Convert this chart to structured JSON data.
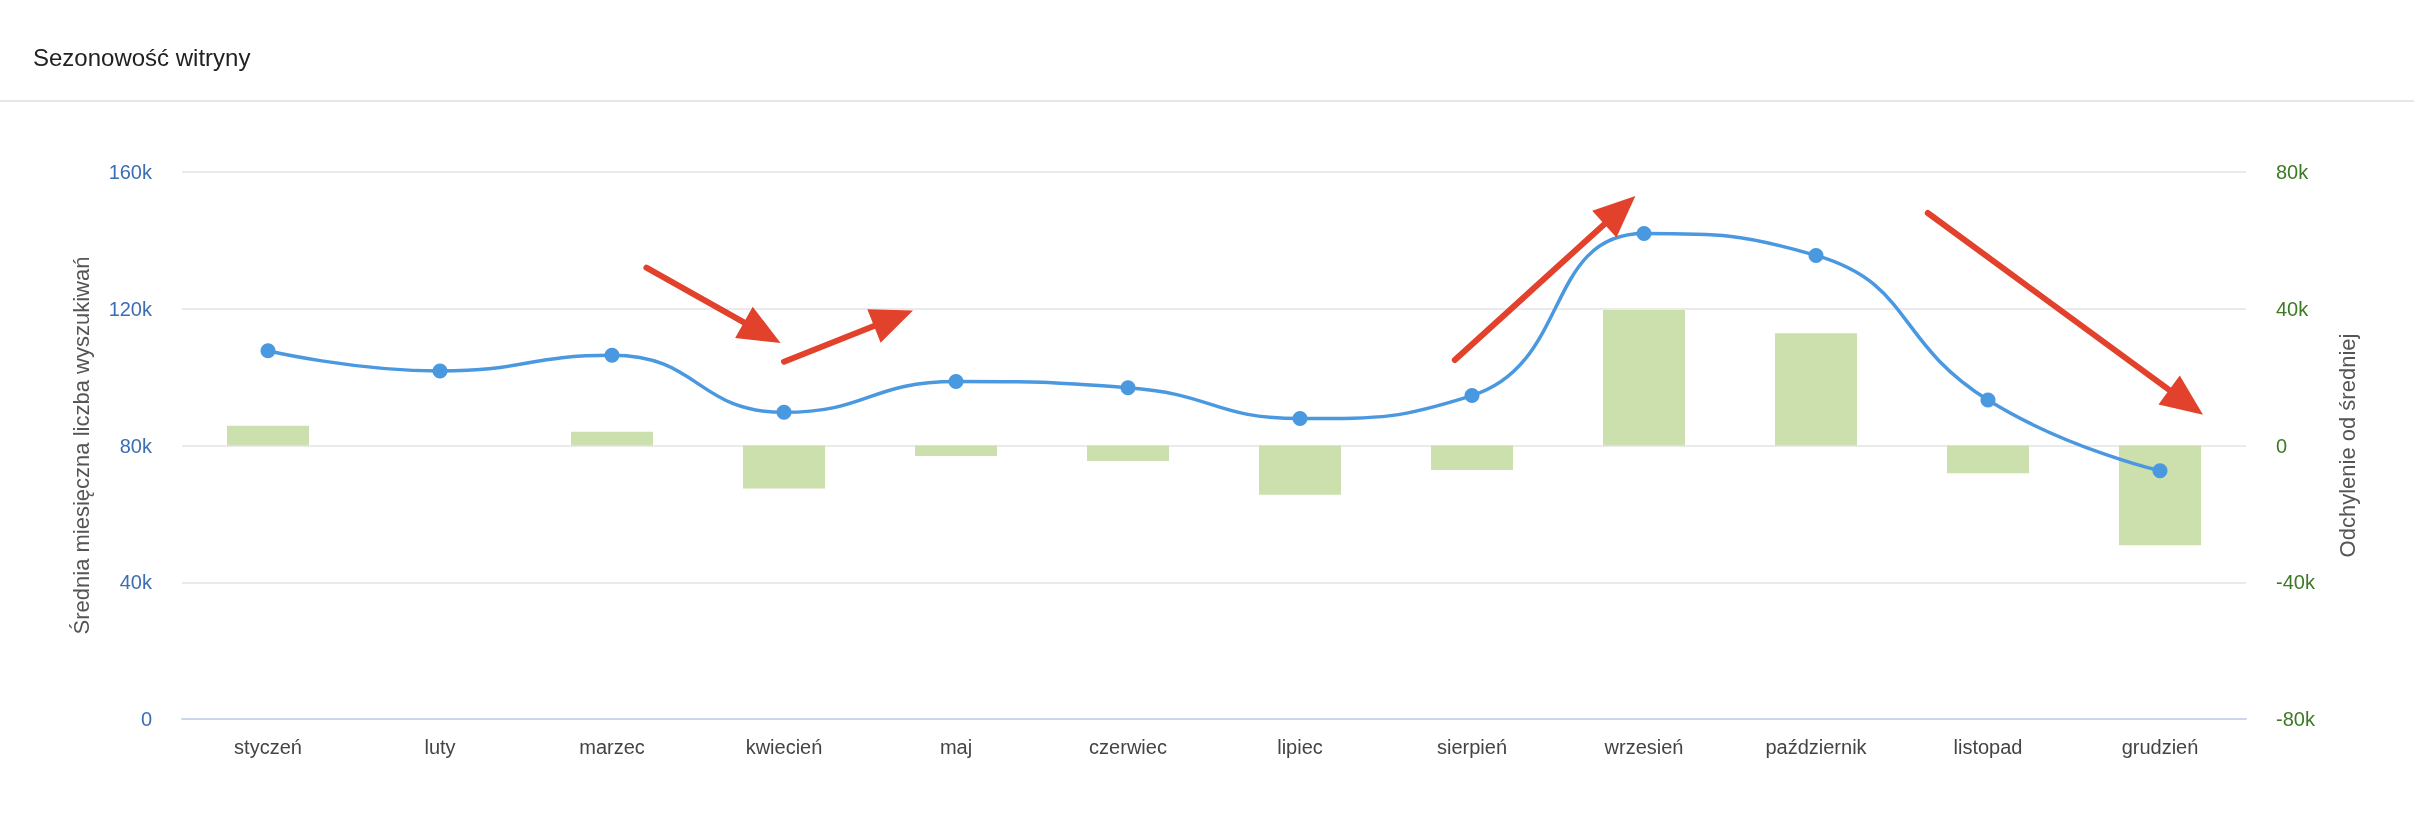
{
  "chart_data": {
    "type": "bar",
    "title": "Sezonowość witryny",
    "ylabel": "Średnia miesięczna liczba wyszukiwań",
    "y2label": "Odchylenie od średniej",
    "categories": [
      "styczeń",
      "luty",
      "marzec",
      "kwiecień",
      "maj",
      "czerwiec",
      "lipiec",
      "sierpień",
      "wrzesień",
      "październik",
      "listopad",
      "grudzień"
    ],
    "series": [
      {
        "axis": "y2",
        "color": "#cce0ad",
        "values": [
          5800,
          0,
          4000,
          -12600,
          -3100,
          -4500,
          -14400,
          -7200,
          39600,
          32800,
          -8100,
          -29200
        ]
      },
      {
        "type": "line",
        "color": "#4a98e0",
        "values": [
          107700,
          101800,
          106400,
          89700,
          98700,
          96900,
          87900,
          94600,
          142000,
          135600,
          93300,
          72600
        ]
      }
    ],
    "ylim": [
      0,
      160000
    ],
    "yticks": [
      {
        "value": 0,
        "label": "0"
      },
      {
        "value": 40000,
        "label": "40k"
      },
      {
        "value": 80000,
        "label": "80k"
      },
      {
        "value": 120000,
        "label": "120k"
      },
      {
        "value": 160000,
        "label": "160k"
      }
    ],
    "y2lim": [
      -80000,
      80000
    ],
    "y2ticks": [
      {
        "value": -80000,
        "label": "-80k"
      },
      {
        "value": -40000,
        "label": "-40k"
      },
      {
        "value": 0,
        "label": "0"
      },
      {
        "value": 40000,
        "label": "40k"
      },
      {
        "value": 80000,
        "label": "80k"
      }
    ],
    "grid": "y",
    "marker": "circle",
    "line_style": "solid"
  }
}
